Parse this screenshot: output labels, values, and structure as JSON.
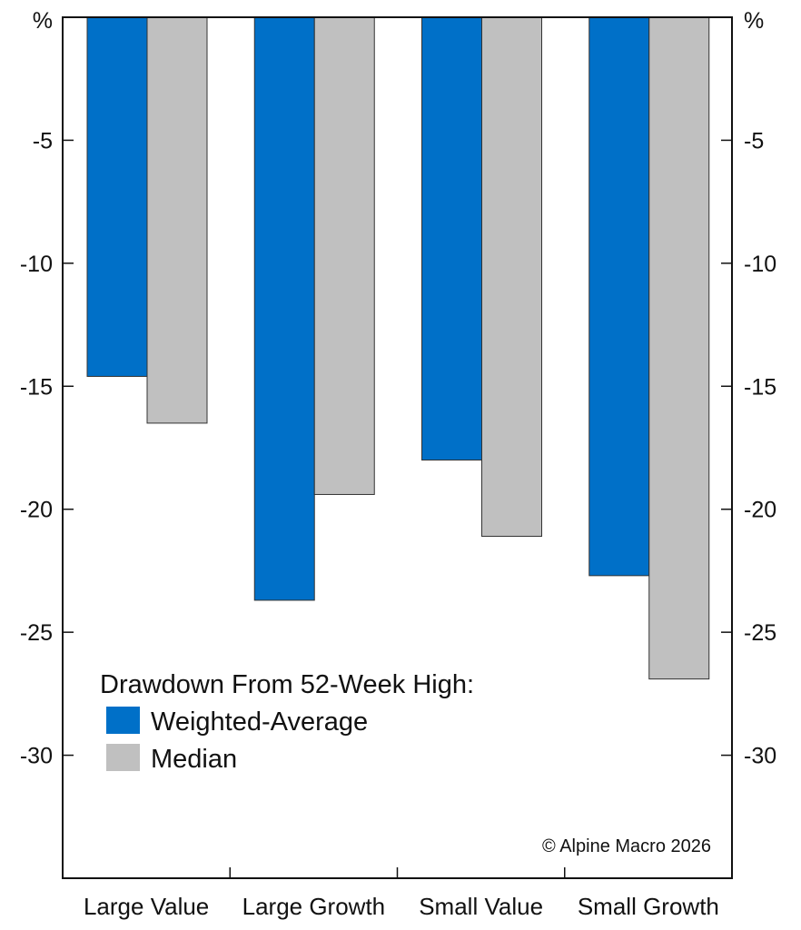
{
  "chart_data": {
    "type": "bar",
    "categories": [
      "Large Value",
      "Large Growth",
      "Small Value",
      "Small Growth"
    ],
    "series": [
      {
        "name": "Weighted-Average",
        "values": [
          -14.6,
          -23.7,
          -18.0,
          -22.7
        ],
        "color": "#0070c8"
      },
      {
        "name": "Median",
        "values": [
          -16.5,
          -19.4,
          -21.1,
          -26.9
        ],
        "color": "#c0c0c0"
      }
    ],
    "ylim": [
      -35,
      0
    ],
    "yticks": [
      0,
      -5,
      -10,
      -15,
      -20,
      -25,
      -30
    ],
    "ytick_labels": [
      "%",
      "-5",
      "-10",
      "-15",
      "-20",
      "-25",
      "-30"
    ],
    "grid": false,
    "legend_title": "Drawdown From 52-Week High:",
    "legend_position": "bottom-left",
    "copyright": "© Alpine Macro 2026"
  }
}
